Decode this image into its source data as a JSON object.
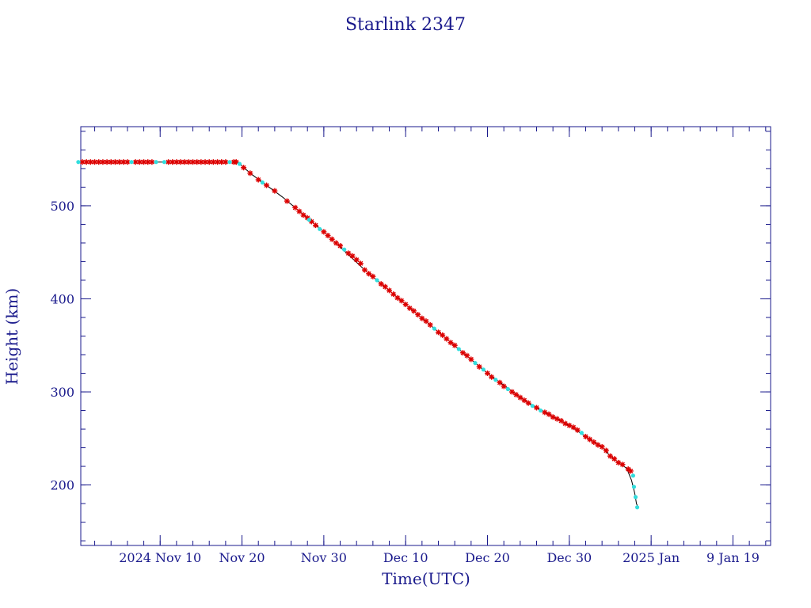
{
  "chart_data": {
    "type": "scatter",
    "title": "Starlink 2347",
    "xlabel": "Time(UTC)",
    "ylabel": "Height (km)",
    "x_unit": "days since 2024-11-01 00:00 UTC",
    "xlim": [
      -9.7,
      74.6
    ],
    "ylim": [
      135,
      585
    ],
    "x_ticks": [
      {
        "value": 0,
        "label": "2024 Nov 10"
      },
      {
        "value": 10,
        "label": "Nov 20"
      },
      {
        "value": 20,
        "label": "Nov 30"
      },
      {
        "value": 30,
        "label": "Dec 10"
      },
      {
        "value": 40,
        "label": "Dec 20"
      },
      {
        "value": 50,
        "label": "Dec 30"
      },
      {
        "value": 60,
        "label": "2025 Jan"
      },
      {
        "value": 70,
        "label": "9 Jan 19"
      }
    ],
    "x_minor_step": 2,
    "y_ticks": [
      200,
      300,
      400,
      500
    ],
    "y_minor_step": 20,
    "grid": false,
    "colors": {
      "axis": "#1a1a8c",
      "line": "#000000",
      "primary": "#dd0000",
      "secondary": "#33dddd"
    },
    "trajectory": {
      "x": [
        -9.7,
        9.5,
        10,
        11,
        15,
        20,
        25,
        30,
        35,
        40,
        45,
        50,
        52,
        54,
        55,
        56,
        57,
        57.6,
        58.0,
        58.2,
        58.4
      ],
      "y": [
        547,
        547,
        543,
        535,
        509,
        472,
        431,
        394,
        357,
        320,
        288,
        264,
        252,
        241,
        231,
        224,
        218,
        205,
        191,
        180,
        176
      ]
    },
    "series": [
      {
        "marker": "asterisk",
        "color": "#dd0000",
        "x": [
          -9.5,
          -9,
          -8.5,
          -8,
          -7.5,
          -7,
          -6.5,
          -6,
          -5.5,
          -5,
          -4.5,
          -4,
          -3,
          -2.5,
          -2,
          -1.5,
          -1,
          1,
          1.5,
          2,
          2.5,
          3,
          3.5,
          4,
          4.5,
          5,
          5.5,
          6,
          6.5,
          7,
          7.5,
          8,
          9,
          9.3,
          10.2,
          11,
          12,
          13,
          14,
          15.5,
          16.5,
          17,
          17.5,
          18,
          18.5,
          19,
          20,
          20.5,
          21,
          21.5,
          22,
          23,
          23.5,
          24,
          24.5,
          25,
          25.5,
          26,
          27,
          27.5,
          28,
          28.5,
          29,
          29.5,
          30,
          30.5,
          31,
          31.5,
          32,
          32.5,
          33,
          34,
          34.5,
          35,
          35.5,
          36,
          37,
          37.5,
          38,
          39,
          40,
          40.5,
          41.5,
          42,
          43,
          43.5,
          44,
          44.5,
          45,
          46,
          47,
          47.5,
          48,
          48.5,
          49,
          49.5,
          50,
          50.5,
          51,
          52,
          52.5,
          53,
          53.5,
          54,
          54.5,
          55,
          55.5,
          56,
          56.5,
          57.2,
          57.5
        ],
        "y": [
          547,
          547,
          547,
          547,
          547,
          547,
          547,
          547,
          547,
          547,
          547,
          547,
          547,
          547,
          547,
          547,
          547,
          547,
          547,
          547,
          547,
          547,
          547,
          547,
          547,
          547,
          547,
          547,
          547,
          547,
          547,
          547,
          547,
          547,
          541,
          535,
          528,
          522,
          516,
          505,
          498,
          494,
          490,
          487,
          483,
          479,
          472,
          468,
          464,
          460,
          457,
          449,
          446,
          442,
          438,
          431,
          427,
          424,
          416,
          413,
          409,
          405,
          401,
          398,
          394,
          390,
          387,
          383,
          379,
          376,
          372,
          364,
          361,
          357,
          353,
          350,
          342,
          339,
          335,
          327,
          320,
          316,
          310,
          306,
          300,
          297,
          294,
          291,
          288,
          283,
          278,
          276,
          273,
          271,
          269,
          266,
          264,
          262,
          259,
          252,
          249,
          246,
          243,
          241,
          237,
          231,
          228,
          224,
          222,
          217,
          215
        ]
      },
      {
        "marker": "dot",
        "color": "#33dddd",
        "x": [
          -10,
          -3.5,
          -0.5,
          0.5,
          8.5,
          9.7,
          12.5,
          18.2,
          19.5,
          22.5,
          26.5,
          33.5,
          36.5,
          38.5,
          39.5,
          41,
          42.5,
          45.5,
          46.5,
          51.5,
          57.8,
          57.9,
          58.1,
          58.3
        ],
        "y": [
          547,
          547,
          547,
          547,
          547,
          545,
          525,
          485,
          475,
          453,
          420,
          368,
          346,
          331,
          324,
          313,
          303,
          285,
          280,
          256,
          210,
          198,
          187,
          176
        ]
      }
    ]
  }
}
